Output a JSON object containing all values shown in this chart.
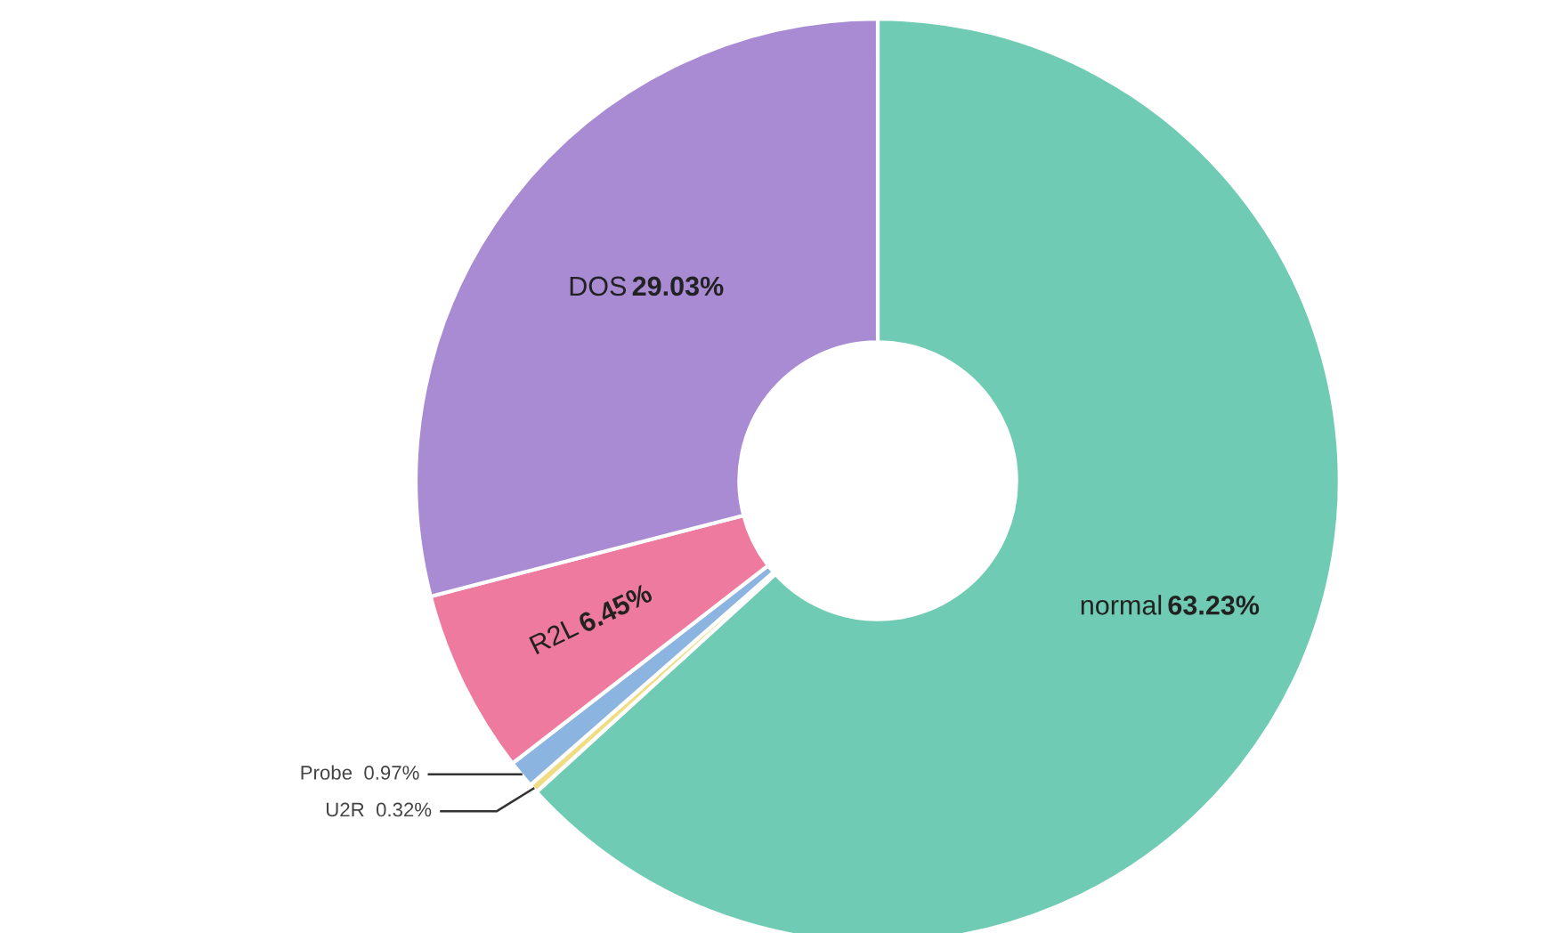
{
  "chart_data": {
    "type": "donut",
    "categories": [
      "normal",
      "U2R",
      "Probe",
      "R2L",
      "DOS"
    ],
    "values": [
      63.23,
      0.32,
      0.97,
      6.45,
      29.03
    ],
    "value_labels": [
      "63.23%",
      "0.32%",
      "0.97%",
      "6.45%",
      "29.03%"
    ],
    "colors": [
      "#6fcbb4",
      "#f0dc82",
      "#8cb4e0",
      "#ef7aa0",
      "#a98bd4"
    ]
  }
}
